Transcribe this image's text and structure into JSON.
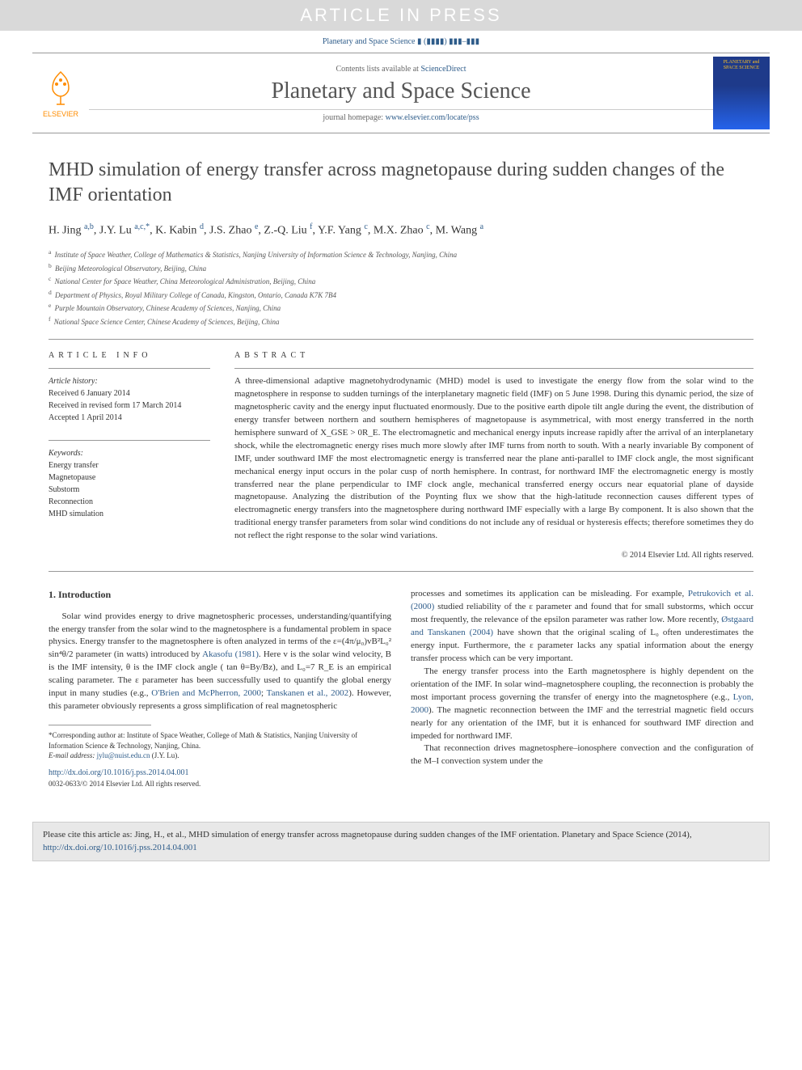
{
  "watermark": "ARTICLE IN PRESS",
  "journal_ref": "Planetary and Space Science ▮ (▮▮▮▮) ▮▮▮–▮▮▮",
  "header": {
    "elsevier_label": "ELSEVIER",
    "contents_prefix": "Contents lists available at ",
    "contents_link": "ScienceDirect",
    "journal_name": "Planetary and Space Science",
    "homepage_prefix": "journal homepage: ",
    "homepage_link": "www.elsevier.com/locate/pss",
    "cover_text": "PLANETARY and SPACE SCIENCE"
  },
  "title": "MHD simulation of energy transfer across magnetopause during sudden changes of the IMF orientation",
  "authors_html": "H. Jing <sup>a,b</sup>, J.Y. Lu <sup>a,c,*</sup>, K. Kabin <sup>d</sup>, J.S. Zhao <sup>e</sup>, Z.-Q. Liu <sup>f</sup>, Y.F. Yang <sup>c</sup>, M.X. Zhao <sup>c</sup>, M. Wang <sup>a</sup>",
  "affiliations": [
    {
      "sup": "a",
      "text": "Institute of Space Weather, College of Mathematics & Statistics, Nanjing University of Information Science & Technology, Nanjing, China"
    },
    {
      "sup": "b",
      "text": "Beijing Meteorological Observatory, Beijing, China"
    },
    {
      "sup": "c",
      "text": "National Center for Space Weather, China Meteorological Administration, Beijing, China"
    },
    {
      "sup": "d",
      "text": "Department of Physics, Royal Military College of Canada, Kingston, Ontario, Canada K7K 7B4"
    },
    {
      "sup": "e",
      "text": "Purple Mountain Observatory, Chinese Academy of Sciences, Nanjing, China"
    },
    {
      "sup": "f",
      "text": "National Space Science Center, Chinese Academy of Sciences, Beijing, China"
    }
  ],
  "article_info_heading": "ARTICLE INFO",
  "history": {
    "label": "Article history:",
    "received": "Received 6 January 2014",
    "revised": "Received in revised form 17 March 2014",
    "accepted": "Accepted 1 April 2014"
  },
  "keywords": {
    "label": "Keywords:",
    "items": [
      "Energy transfer",
      "Magnetopause",
      "Substorm",
      "Reconnection",
      "MHD simulation"
    ]
  },
  "abstract_heading": "ABSTRACT",
  "abstract_text": "A three-dimensional adaptive magnetohydrodynamic (MHD) model is used to investigate the energy flow from the solar wind to the magnetosphere in response to sudden turnings of the interplanetary magnetic field (IMF) on 5 June 1998. During this dynamic period, the size of magnetospheric cavity and the energy input fluctuated enormously. Due to the positive earth dipole tilt angle during the event, the distribution of energy transfer between northern and southern hemispheres of magnetopause is asymmetrical, with most energy transferred in the north hemisphere sunward of X_GSE > 0R_E. The electromagnetic and mechanical energy inputs increase rapidly after the arrival of an interplanetary shock, while the electromagnetic energy rises much more slowly after IMF turns from north to south. With a nearly invariable By component of IMF, under southward IMF the most electromagnetic energy is transferred near the plane anti-parallel to IMF clock angle, the most significant mechanical energy input occurs in the polar cusp of north hemisphere. In contrast, for northward IMF the electromagnetic energy is mostly transferred near the plane perpendicular to IMF clock angle, mechanical transferred energy occurs near equatorial plane of dayside magnetopause. Analyzing the distribution of the Poynting flux we show that the high-latitude reconnection causes different types of electromagnetic energy transfers into the magnetosphere during northward IMF especially with a large By component. It is also shown that the traditional energy transfer parameters from solar wind conditions do not include any of residual or hysteresis effects; therefore sometimes they do not reflect the right response to the solar wind variations.",
  "abstract_copyright": "© 2014 Elsevier Ltd. All rights reserved.",
  "intro": {
    "heading": "1. Introduction",
    "col1_p1_pre": "Solar wind provides energy to drive magnetospheric processes, understanding/quantifying the energy transfer from the solar wind to the magnetosphere is a fundamental problem in space physics. Energy transfer to the magnetosphere is often analyzed in terms of the ε=(4π/μ₀)vB²L₀² sin⁴θ/2 parameter (in watts) introduced by ",
    "link_akasofu": "Akasofu (1981)",
    "col1_p1_mid": ". Here v is the solar wind velocity, B is the IMF intensity, θ is the IMF clock angle ( tan θ=By/Bz), and L₀=7 R_E is an empirical scaling parameter. The ε parameter has been successfully used to quantify the global energy input in many studies (e.g., ",
    "link_obrien": "O'Brien and McPherron, 2000",
    "sep1": "; ",
    "link_tanskanen": "Tanskanen et al., 2002",
    "col1_p1_end": "). However, this parameter obviously represents a gross simplification of real magnetospheric",
    "col2_p1_pre": "processes and sometimes its application can be misleading. For example, ",
    "link_petruk": "Petrukovich et al. (2000)",
    "col2_p1_mid": " studied reliability of the ε parameter and found that for small substorms, which occur most frequently, the relevance of the epsilon parameter was rather low. More recently, ",
    "link_ostgaard": "Østgaard and Tanskanen (2004)",
    "col2_p1_end": " have shown that the original scaling of L₀ often underestimates the energy input. Furthermore, the ε parameter lacks any spatial information about the energy transfer process which can be very important.",
    "col2_p2_pre": "The energy transfer process into the Earth magnetosphere is highly dependent on the orientation of the IMF. In solar wind–magnetosphere coupling, the reconnection is probably the most important process governing the transfer of energy into the magnetosphere (e.g., ",
    "link_lyon": "Lyon, 2000",
    "col2_p2_end": "). The magnetic reconnection between the IMF and the terrestrial magnetic field occurs nearly for any orientation of the IMF, but it is enhanced for southward IMF direction and impeded for northward IMF.",
    "col2_p3": "That reconnection drives magnetosphere–ionosphere convection and the configuration of the M–I convection system under the"
  },
  "footnote": {
    "corr": "*Corresponding author at: Institute of Space Weather, College of Math & Statistics, Nanjing University of Information Science & Technology, Nanjing, China.",
    "email_label": "E-mail address: ",
    "email": "jylu@nuist.edu.cn",
    "email_name": " (J.Y. Lu)."
  },
  "doi": {
    "link": "http://dx.doi.org/10.1016/j.pss.2014.04.001",
    "issn": "0032-0633/© 2014 Elsevier Ltd. All rights reserved."
  },
  "citation": {
    "text_pre": "Please cite this article as: Jing, H., et al., MHD simulation of energy transfer across magnetopause during sudden changes of the IMF orientation. Planetary and Space Science (2014), ",
    "link": "http://dx.doi.org/10.1016/j.pss.2014.04.001"
  },
  "colors": {
    "link": "#2e5c8a",
    "watermark_bg": "#d9d9d9",
    "elsevier_orange": "#ff8c00"
  }
}
